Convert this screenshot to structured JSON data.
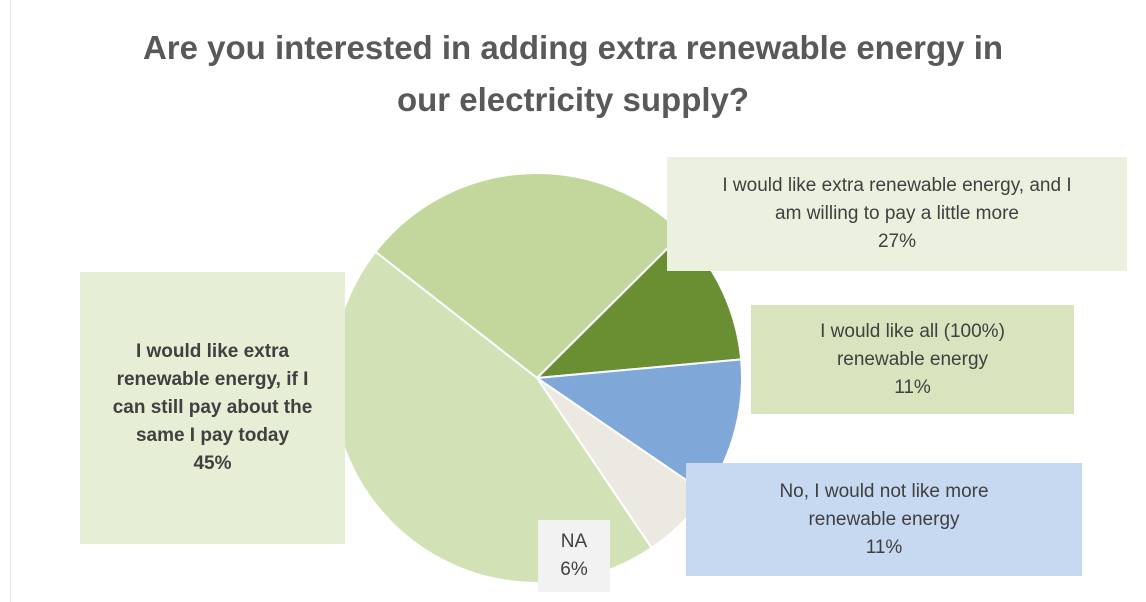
{
  "chart_data": {
    "type": "pie",
    "title_lines": [
      "Are you interested in adding extra renewable energy in",
      "our electricity supply?"
    ],
    "slices": [
      {
        "key": "pay-more",
        "lines": [
          "I would like extra renewable energy, and I",
          "am willing to pay a little more"
        ],
        "pct_label": "27%",
        "value": 27,
        "color": "#c3d69b",
        "box_color": "#ebf1de",
        "bold": false
      },
      {
        "key": "all-100",
        "lines": [
          "I would like all (100%)",
          "renewable energy"
        ],
        "pct_label": "11%",
        "value": 11,
        "color": "#6a8f33",
        "box_color": "#d7e4bd",
        "bold": false
      },
      {
        "key": "not-more",
        "lines": [
          "No, I would not like more",
          "renewable energy"
        ],
        "pct_label": "11%",
        "value": 11,
        "color": "#7fa8d8",
        "box_color": "#c6d9f1",
        "bold": false
      },
      {
        "key": "na",
        "lines": [
          "NA"
        ],
        "pct_label": "6%",
        "value": 6,
        "color": "#ece9e2",
        "box_color": "#f2f2f2",
        "bold": false
      },
      {
        "key": "same-price",
        "lines": [
          "I would like extra",
          "renewable energy, if I",
          "can still pay about the",
          "same I pay today"
        ],
        "pct_label": "45%",
        "value": 45,
        "color": "#d3e1b6",
        "box_color": "#e6eed5",
        "bold": true
      }
    ]
  }
}
